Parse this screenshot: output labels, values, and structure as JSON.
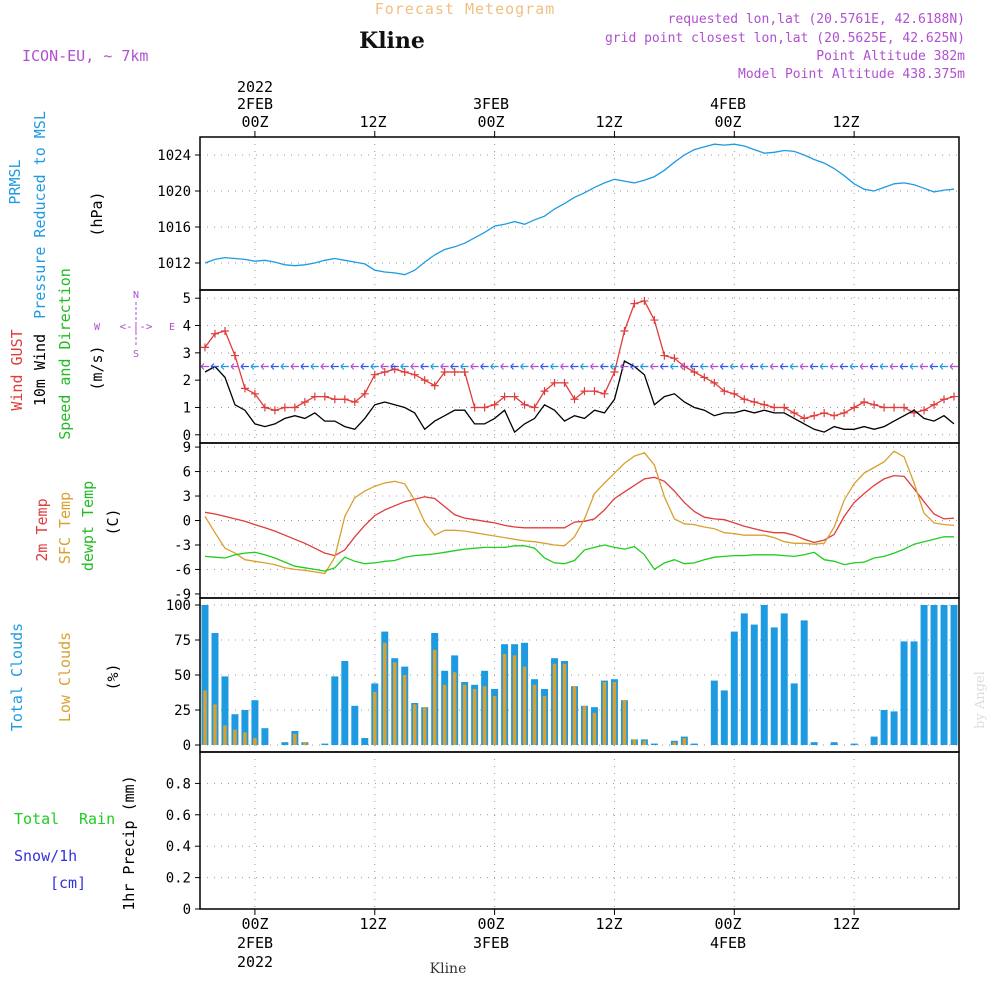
{
  "header": {
    "title": "Forecast Meteogram",
    "location": "Kline",
    "model": "ICON-EU, ~ 7km",
    "requested": "requested lon,lat (20.5761E, 42.6188N)",
    "grid_point": "grid point closest lon,lat (20.5625E, 42.625N)",
    "point_altitude": "Point Altitude 382m",
    "model_altitude": "Model Point Altitude 438.375m"
  },
  "footer": {
    "location": "Kline",
    "watermark": "by Angel"
  },
  "time_axis": {
    "top_year": "2022",
    "dates": [
      "2FEB",
      "3FEB",
      "4FEB"
    ],
    "hour_labels": [
      "00Z",
      "12Z",
      "00Z",
      "12Z",
      "00Z",
      "12Z"
    ],
    "bottom_year": "2022"
  },
  "colors": {
    "pressure": "#1e9be0",
    "gust": "#e03c3c",
    "wind": "#000000",
    "direction": "#22bb22",
    "temp": "#e03c3c",
    "sfc_temp": "#d9a030",
    "dewpt": "#22cc22",
    "total_clouds": "#1e9be0",
    "low_clouds": "#d9a030",
    "rain": "#22cc22",
    "snow": "#3333dd",
    "purple": "#b050d0",
    "title_orange": "#f0c080"
  },
  "panels": {
    "pressure": {
      "label1": "PRMSL",
      "label2": "Pressure Reduced to MSL",
      "unit": "(hPa)"
    },
    "wind": {
      "label_gust": "Wind GUST",
      "label_wind": "10m Wind",
      "label_dir": "Speed and Direction",
      "unit": "(m/s)",
      "compass_n": "N",
      "compass_s": "S",
      "compass_w": "W",
      "compass_e": "E"
    },
    "temp": {
      "label_temp": "2m Temp",
      "label_sfc": "SFC Temp",
      "label_dew": "dewpt Temp",
      "unit": "(C)"
    },
    "clouds": {
      "label_total": "Total Clouds",
      "label_low": "Low Clouds",
      "unit": "(%)"
    },
    "precip": {
      "label_total": "Total",
      "label_rain": "Rain",
      "label_snow": "Snow/1h",
      "label_cm": "[cm]",
      "unit": "1hr Precip (mm)"
    }
  },
  "chart_data": [
    {
      "type": "line",
      "ylabel": "Pressure Reduced to MSL (hPa)",
      "ylim": [
        1009,
        1026
      ],
      "yticks": [
        1012,
        1016,
        1020,
        1024
      ],
      "grid": true,
      "x_hours": [
        -5,
        -4,
        -3,
        -2,
        -1,
        0,
        1,
        2,
        3,
        4,
        5,
        6,
        7,
        8,
        9,
        10,
        11,
        12,
        13,
        14,
        15,
        16,
        17,
        18,
        19,
        20,
        21,
        22,
        23,
        24,
        25,
        26,
        27,
        28,
        29,
        30,
        31,
        32,
        33,
        34,
        35,
        36,
        37,
        38,
        39,
        40,
        41,
        42,
        43,
        44,
        45,
        46,
        47,
        48,
        49,
        50,
        51,
        52,
        53,
        54,
        55,
        56,
        57,
        58,
        59,
        60,
        61,
        62,
        63,
        64,
        65,
        66,
        67,
        68,
        69,
        70
      ],
      "series": [
        {
          "name": "PRMSL",
          "values": [
            1012.0,
            1012.4,
            1012.6,
            1012.5,
            1012.4,
            1012.2,
            1012.3,
            1012.1,
            1011.8,
            1011.7,
            1011.8,
            1012.0,
            1012.3,
            1012.5,
            1012.3,
            1012.1,
            1011.9,
            1011.2,
            1011.0,
            1010.9,
            1010.7,
            1011.2,
            1012.1,
            1012.9,
            1013.5,
            1013.8,
            1014.2,
            1014.8,
            1015.4,
            1016.1,
            1016.3,
            1016.6,
            1016.3,
            1016.8,
            1017.2,
            1018.0,
            1018.6,
            1019.3,
            1019.8,
            1020.4,
            1020.9,
            1021.3,
            1021.1,
            1020.9,
            1021.2,
            1021.6,
            1022.3,
            1023.2,
            1024.0,
            1024.6,
            1024.9,
            1025.2,
            1025.1,
            1025.2,
            1025.0,
            1024.6,
            1024.2,
            1024.3,
            1024.5,
            1024.4,
            1024.0,
            1023.5,
            1023.1,
            1022.5,
            1021.7,
            1020.8,
            1020.2,
            1020.0,
            1020.4,
            1020.8,
            1020.9,
            1020.7,
            1020.3,
            1019.9,
            1020.1,
            1020.2
          ]
        }
      ]
    },
    {
      "type": "line",
      "ylabel": "Speed and Direction (m/s)",
      "ylim": [
        -0.3,
        5.3
      ],
      "yticks": [
        0,
        1,
        2,
        3,
        4,
        5
      ],
      "grid": true,
      "x_hours": [
        -5,
        -4,
        -3,
        -2,
        -1,
        0,
        1,
        2,
        3,
        4,
        5,
        6,
        7,
        8,
        9,
        10,
        11,
        12,
        13,
        14,
        15,
        16,
        17,
        18,
        19,
        20,
        21,
        22,
        23,
        24,
        25,
        26,
        27,
        28,
        29,
        30,
        31,
        32,
        33,
        34,
        35,
        36,
        37,
        38,
        39,
        40,
        41,
        42,
        43,
        44,
        45,
        46,
        47,
        48,
        49,
        50,
        51,
        52,
        53,
        54,
        55,
        56,
        57,
        58,
        59,
        60,
        61,
        62,
        63,
        64,
        65,
        66,
        67,
        68,
        69,
        70
      ],
      "series": [
        {
          "name": "Wind GUST",
          "values": [
            3.2,
            3.7,
            3.8,
            2.9,
            1.7,
            1.5,
            1.0,
            0.9,
            1.0,
            1.0,
            1.2,
            1.4,
            1.4,
            1.3,
            1.3,
            1.2,
            1.5,
            2.2,
            2.3,
            2.4,
            2.3,
            2.2,
            2.0,
            1.8,
            2.3,
            2.3,
            2.3,
            1.0,
            1.0,
            1.1,
            1.4,
            1.4,
            1.1,
            1.0,
            1.6,
            1.9,
            1.9,
            1.3,
            1.6,
            1.6,
            1.5,
            2.3,
            3.8,
            4.8,
            4.9,
            4.2,
            2.9,
            2.8,
            2.5,
            2.3,
            2.1,
            1.9,
            1.6,
            1.5,
            1.3,
            1.2,
            1.1,
            1.0,
            1.0,
            0.8,
            0.6,
            0.7,
            0.8,
            0.7,
            0.8,
            1.0,
            1.2,
            1.1,
            1.0,
            1.0,
            1.0,
            0.8,
            0.9,
            1.1,
            1.3,
            1.4
          ]
        },
        {
          "name": "10m Wind",
          "values": [
            2.3,
            2.5,
            2.1,
            1.1,
            0.9,
            0.4,
            0.3,
            0.4,
            0.6,
            0.7,
            0.6,
            0.8,
            0.5,
            0.5,
            0.3,
            0.2,
            0.6,
            1.1,
            1.2,
            1.1,
            1.0,
            0.8,
            0.2,
            0.5,
            0.7,
            0.9,
            0.9,
            0.4,
            0.4,
            0.6,
            0.9,
            0.1,
            0.4,
            0.6,
            1.1,
            0.9,
            0.5,
            0.7,
            0.6,
            0.9,
            0.8,
            1.3,
            2.7,
            2.5,
            2.2,
            1.1,
            1.4,
            1.5,
            1.2,
            1.0,
            0.9,
            0.7,
            0.8,
            0.8,
            0.9,
            0.8,
            0.9,
            0.8,
            0.8,
            0.6,
            0.4,
            0.2,
            0.1,
            0.3,
            0.2,
            0.2,
            0.3,
            0.2,
            0.3,
            0.5,
            0.7,
            0.9,
            0.6,
            0.5,
            0.7,
            0.4
          ]
        }
      ]
    },
    {
      "type": "line",
      "ylabel": "(C)",
      "ylim": [
        -9.5,
        9.5
      ],
      "yticks": [
        -9,
        -6,
        -3,
        0,
        3,
        6,
        9
      ],
      "grid": true,
      "x_hours": [
        -5,
        -4,
        -3,
        -2,
        -1,
        0,
        1,
        2,
        3,
        4,
        5,
        6,
        7,
        8,
        9,
        10,
        11,
        12,
        13,
        14,
        15,
        16,
        17,
        18,
        19,
        20,
        21,
        22,
        23,
        24,
        25,
        26,
        27,
        28,
        29,
        30,
        31,
        32,
        33,
        34,
        35,
        36,
        37,
        38,
        39,
        40,
        41,
        42,
        43,
        44,
        45,
        46,
        47,
        48,
        49,
        50,
        51,
        52,
        53,
        54,
        55,
        56,
        57,
        58,
        59,
        60,
        61,
        62,
        63,
        64,
        65,
        66,
        67,
        68,
        69,
        70
      ],
      "series": [
        {
          "name": "2m Temp",
          "values": [
            1.0,
            0.8,
            0.5,
            0.2,
            -0.1,
            -0.5,
            -0.9,
            -1.3,
            -1.8,
            -2.3,
            -2.8,
            -3.4,
            -4.0,
            -4.3,
            -3.6,
            -2.0,
            -0.6,
            0.6,
            1.3,
            1.8,
            2.3,
            2.6,
            2.9,
            2.7,
            1.7,
            0.7,
            0.3,
            0.1,
            -0.1,
            -0.3,
            -0.6,
            -0.8,
            -0.9,
            -0.9,
            -0.9,
            -0.9,
            -0.9,
            -0.2,
            -0.1,
            0.2,
            1.3,
            2.7,
            3.5,
            4.3,
            5.1,
            5.3,
            4.8,
            3.6,
            2.2,
            1.1,
            0.4,
            0.2,
            0.1,
            -0.3,
            -0.7,
            -1.0,
            -1.3,
            -1.5,
            -1.5,
            -1.8,
            -2.3,
            -2.7,
            -2.4,
            -1.7,
            0.5,
            2.2,
            3.3,
            4.3,
            5.1,
            5.5,
            5.4,
            3.9,
            2.3,
            0.8,
            0.2,
            0.3
          ]
        },
        {
          "name": "SFC Temp",
          "values": [
            0.5,
            -1.5,
            -3.4,
            -4.0,
            -4.8,
            -5.0,
            -5.2,
            -5.4,
            -5.8,
            -6.0,
            -6.1,
            -6.3,
            -6.5,
            -4.5,
            0.5,
            2.8,
            3.6,
            4.2,
            4.6,
            4.8,
            4.5,
            2.5,
            -0.2,
            -1.8,
            -1.2,
            -1.2,
            -1.3,
            -1.5,
            -1.7,
            -1.9,
            -2.1,
            -2.3,
            -2.5,
            -2.6,
            -2.8,
            -3.0,
            -3.1,
            -2.0,
            0.2,
            3.3,
            4.6,
            5.8,
            7.0,
            7.9,
            8.3,
            6.8,
            2.9,
            0.2,
            -0.4,
            -0.5,
            -0.8,
            -1.0,
            -1.5,
            -1.6,
            -1.8,
            -1.8,
            -1.8,
            -2.1,
            -2.6,
            -2.8,
            -2.8,
            -2.9,
            -2.8,
            -0.8,
            2.5,
            4.5,
            5.8,
            6.5,
            7.2,
            8.5,
            7.8,
            4.6,
            0.9,
            -0.3,
            -0.5,
            -0.6
          ]
        },
        {
          "name": "dewpt Temp",
          "values": [
            -4.4,
            -4.5,
            -4.6,
            -4.2,
            -4.0,
            -3.9,
            -4.2,
            -4.6,
            -5.1,
            -5.6,
            -5.8,
            -6.0,
            -6.2,
            -5.8,
            -4.5,
            -5.0,
            -5.3,
            -5.2,
            -5.0,
            -4.9,
            -4.5,
            -4.3,
            -4.2,
            -4.1,
            -3.9,
            -3.7,
            -3.5,
            -3.4,
            -3.3,
            -3.3,
            -3.3,
            -3.1,
            -3.1,
            -3.4,
            -4.6,
            -5.2,
            -5.3,
            -4.9,
            -3.6,
            -3.3,
            -3.0,
            -3.3,
            -3.5,
            -3.2,
            -4.2,
            -6.0,
            -5.2,
            -4.8,
            -5.3,
            -5.2,
            -4.8,
            -4.5,
            -4.4,
            -4.3,
            -4.3,
            -4.2,
            -4.2,
            -4.2,
            -4.3,
            -4.4,
            -4.2,
            -3.9,
            -4.8,
            -5.0,
            -5.4,
            -5.2,
            -5.1,
            -4.6,
            -4.4,
            -4.0,
            -3.5,
            -2.9,
            -2.6,
            -2.3,
            -2.0,
            -2.0
          ]
        }
      ]
    },
    {
      "type": "bar",
      "ylabel": "(%)",
      "ylim": [
        -5,
        105
      ],
      "yticks": [
        0,
        25,
        50,
        75,
        100
      ],
      "grid": true,
      "x_hours": [
        -5,
        -4,
        -3,
        -2,
        -1,
        0,
        1,
        2,
        3,
        4,
        5,
        6,
        7,
        8,
        9,
        10,
        11,
        12,
        13,
        14,
        15,
        16,
        17,
        18,
        19,
        20,
        21,
        22,
        23,
        24,
        25,
        26,
        27,
        28,
        29,
        30,
        31,
        32,
        33,
        34,
        35,
        36,
        37,
        38,
        39,
        40,
        41,
        42,
        43,
        44,
        45,
        46,
        47,
        48,
        49,
        50,
        51,
        52,
        53,
        54,
        55,
        56,
        57,
        58,
        59,
        60,
        61,
        62,
        63,
        64,
        65,
        66,
        67,
        68,
        69,
        70
      ],
      "series": [
        {
          "name": "Total Clouds",
          "values": [
            100,
            80,
            49,
            22,
            25,
            32,
            12,
            0,
            2,
            10,
            2,
            0,
            1,
            49,
            60,
            28,
            5,
            44,
            81,
            62,
            56,
            30,
            27,
            80,
            53,
            64,
            45,
            43,
            53,
            40,
            72,
            72,
            73,
            47,
            40,
            62,
            60,
            42,
            28,
            27,
            46,
            47,
            32,
            4,
            4,
            1,
            0,
            3,
            6,
            1,
            0,
            46,
            39,
            81,
            94,
            86,
            100,
            84,
            94,
            44,
            89,
            2,
            0,
            2,
            0,
            1,
            0,
            6,
            25,
            24,
            74,
            74,
            100,
            100,
            100,
            100
          ]
        },
        {
          "name": "Low Clouds",
          "values": [
            39,
            29,
            14,
            11,
            9,
            5,
            0,
            0,
            0,
            8,
            2,
            0,
            0,
            0,
            0,
            0,
            0,
            38,
            73,
            59,
            50,
            29,
            27,
            68,
            43,
            52,
            43,
            40,
            42,
            35,
            65,
            64,
            56,
            43,
            35,
            58,
            58,
            42,
            28,
            23,
            45,
            45,
            32,
            4,
            3,
            0,
            0,
            2,
            5,
            0,
            0,
            0,
            0,
            0,
            0,
            0,
            0,
            0,
            0,
            0,
            0,
            0,
            0,
            0,
            0,
            0,
            0,
            0,
            0,
            0,
            0,
            0,
            0,
            0,
            0,
            0
          ]
        }
      ]
    },
    {
      "type": "bar",
      "ylabel": "1hr Precip (mm)",
      "ylim": [
        0,
        1
      ],
      "yticks": [
        0,
        0.2,
        0.4,
        0.6,
        0.8
      ],
      "grid": true,
      "series": [
        {
          "name": "Total Rain",
          "values": []
        },
        {
          "name": "Snow/1h",
          "values": []
        }
      ]
    }
  ]
}
